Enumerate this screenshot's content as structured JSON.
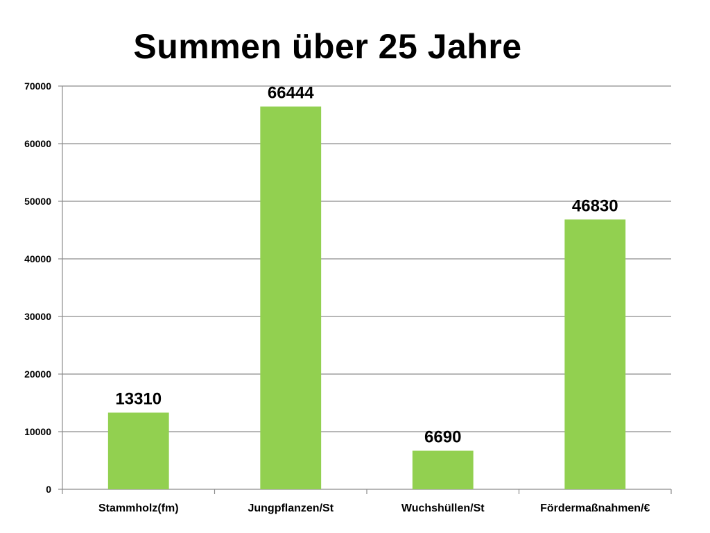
{
  "chart_data": {
    "type": "bar",
    "title": "Summen über 25 Jahre",
    "categories": [
      "Stammholz(fm)",
      "Jungpflanzen/St",
      "Wuchshüllen/St",
      "Fördermaßnahmen/€"
    ],
    "values": [
      13310,
      66444,
      6690,
      46830
    ],
    "data_labels": [
      "13310",
      "66444",
      "6690",
      "46830"
    ],
    "xlabel": "",
    "ylabel": "",
    "ylim": [
      0,
      70000
    ],
    "yticks": [
      0,
      10000,
      20000,
      30000,
      40000,
      50000,
      60000,
      70000
    ],
    "ytick_labels": [
      "0",
      "10000",
      "20000",
      "30000",
      "40000",
      "50000",
      "60000",
      "70000"
    ],
    "grid": true,
    "legend": "none",
    "bar_color": "#92d050",
    "gridline_color": "#8c8c8c"
  }
}
